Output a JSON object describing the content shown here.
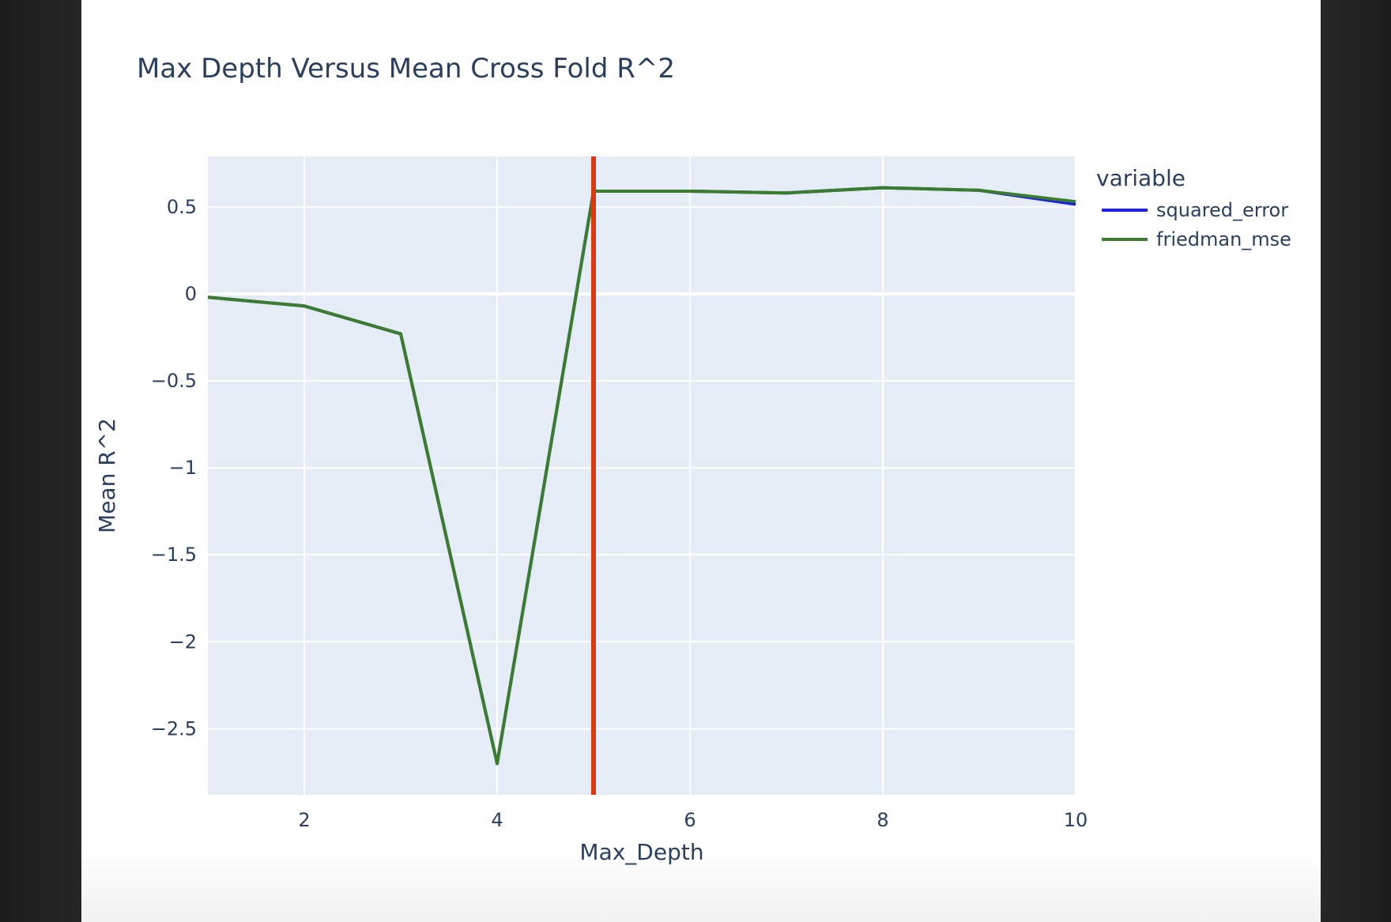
{
  "chart_data": {
    "type": "line",
    "title": "Max Depth Versus Mean Cross Fold R^2",
    "xlabel": "Max_Depth",
    "ylabel": "Mean R^2",
    "xlim": [
      1,
      10
    ],
    "ylim": [
      -2.88,
      0.79
    ],
    "x_ticks": [
      2,
      4,
      6,
      8,
      10
    ],
    "x_tick_labels": [
      "2",
      "4",
      "6",
      "8",
      "10"
    ],
    "y_ticks": [
      0.5,
      0,
      -0.5,
      -1,
      -1.5,
      -2,
      -2.5
    ],
    "y_tick_labels": [
      "0.5",
      "0",
      "−0.5",
      "−1",
      "−1.5",
      "−2",
      "−2.5"
    ],
    "grid": true,
    "legend": {
      "title": "variable",
      "position": "right"
    },
    "reference_line": {
      "x": 5,
      "color": "#dc3912"
    },
    "series": [
      {
        "name": "squared_error",
        "color": "#1f1fe6",
        "x": [
          1,
          2,
          3,
          4,
          5,
          6,
          7,
          8,
          9,
          10
        ],
        "y": [
          -0.02,
          -0.07,
          -0.23,
          -2.7,
          0.59,
          0.59,
          0.58,
          0.61,
          0.595,
          0.515
        ]
      },
      {
        "name": "friedman_mse",
        "color": "#3a7d2c",
        "x": [
          1,
          2,
          3,
          4,
          5,
          6,
          7,
          8,
          9,
          10
        ],
        "y": [
          -0.02,
          -0.07,
          -0.23,
          -2.7,
          0.59,
          0.59,
          0.58,
          0.61,
          0.595,
          0.53
        ]
      }
    ]
  }
}
